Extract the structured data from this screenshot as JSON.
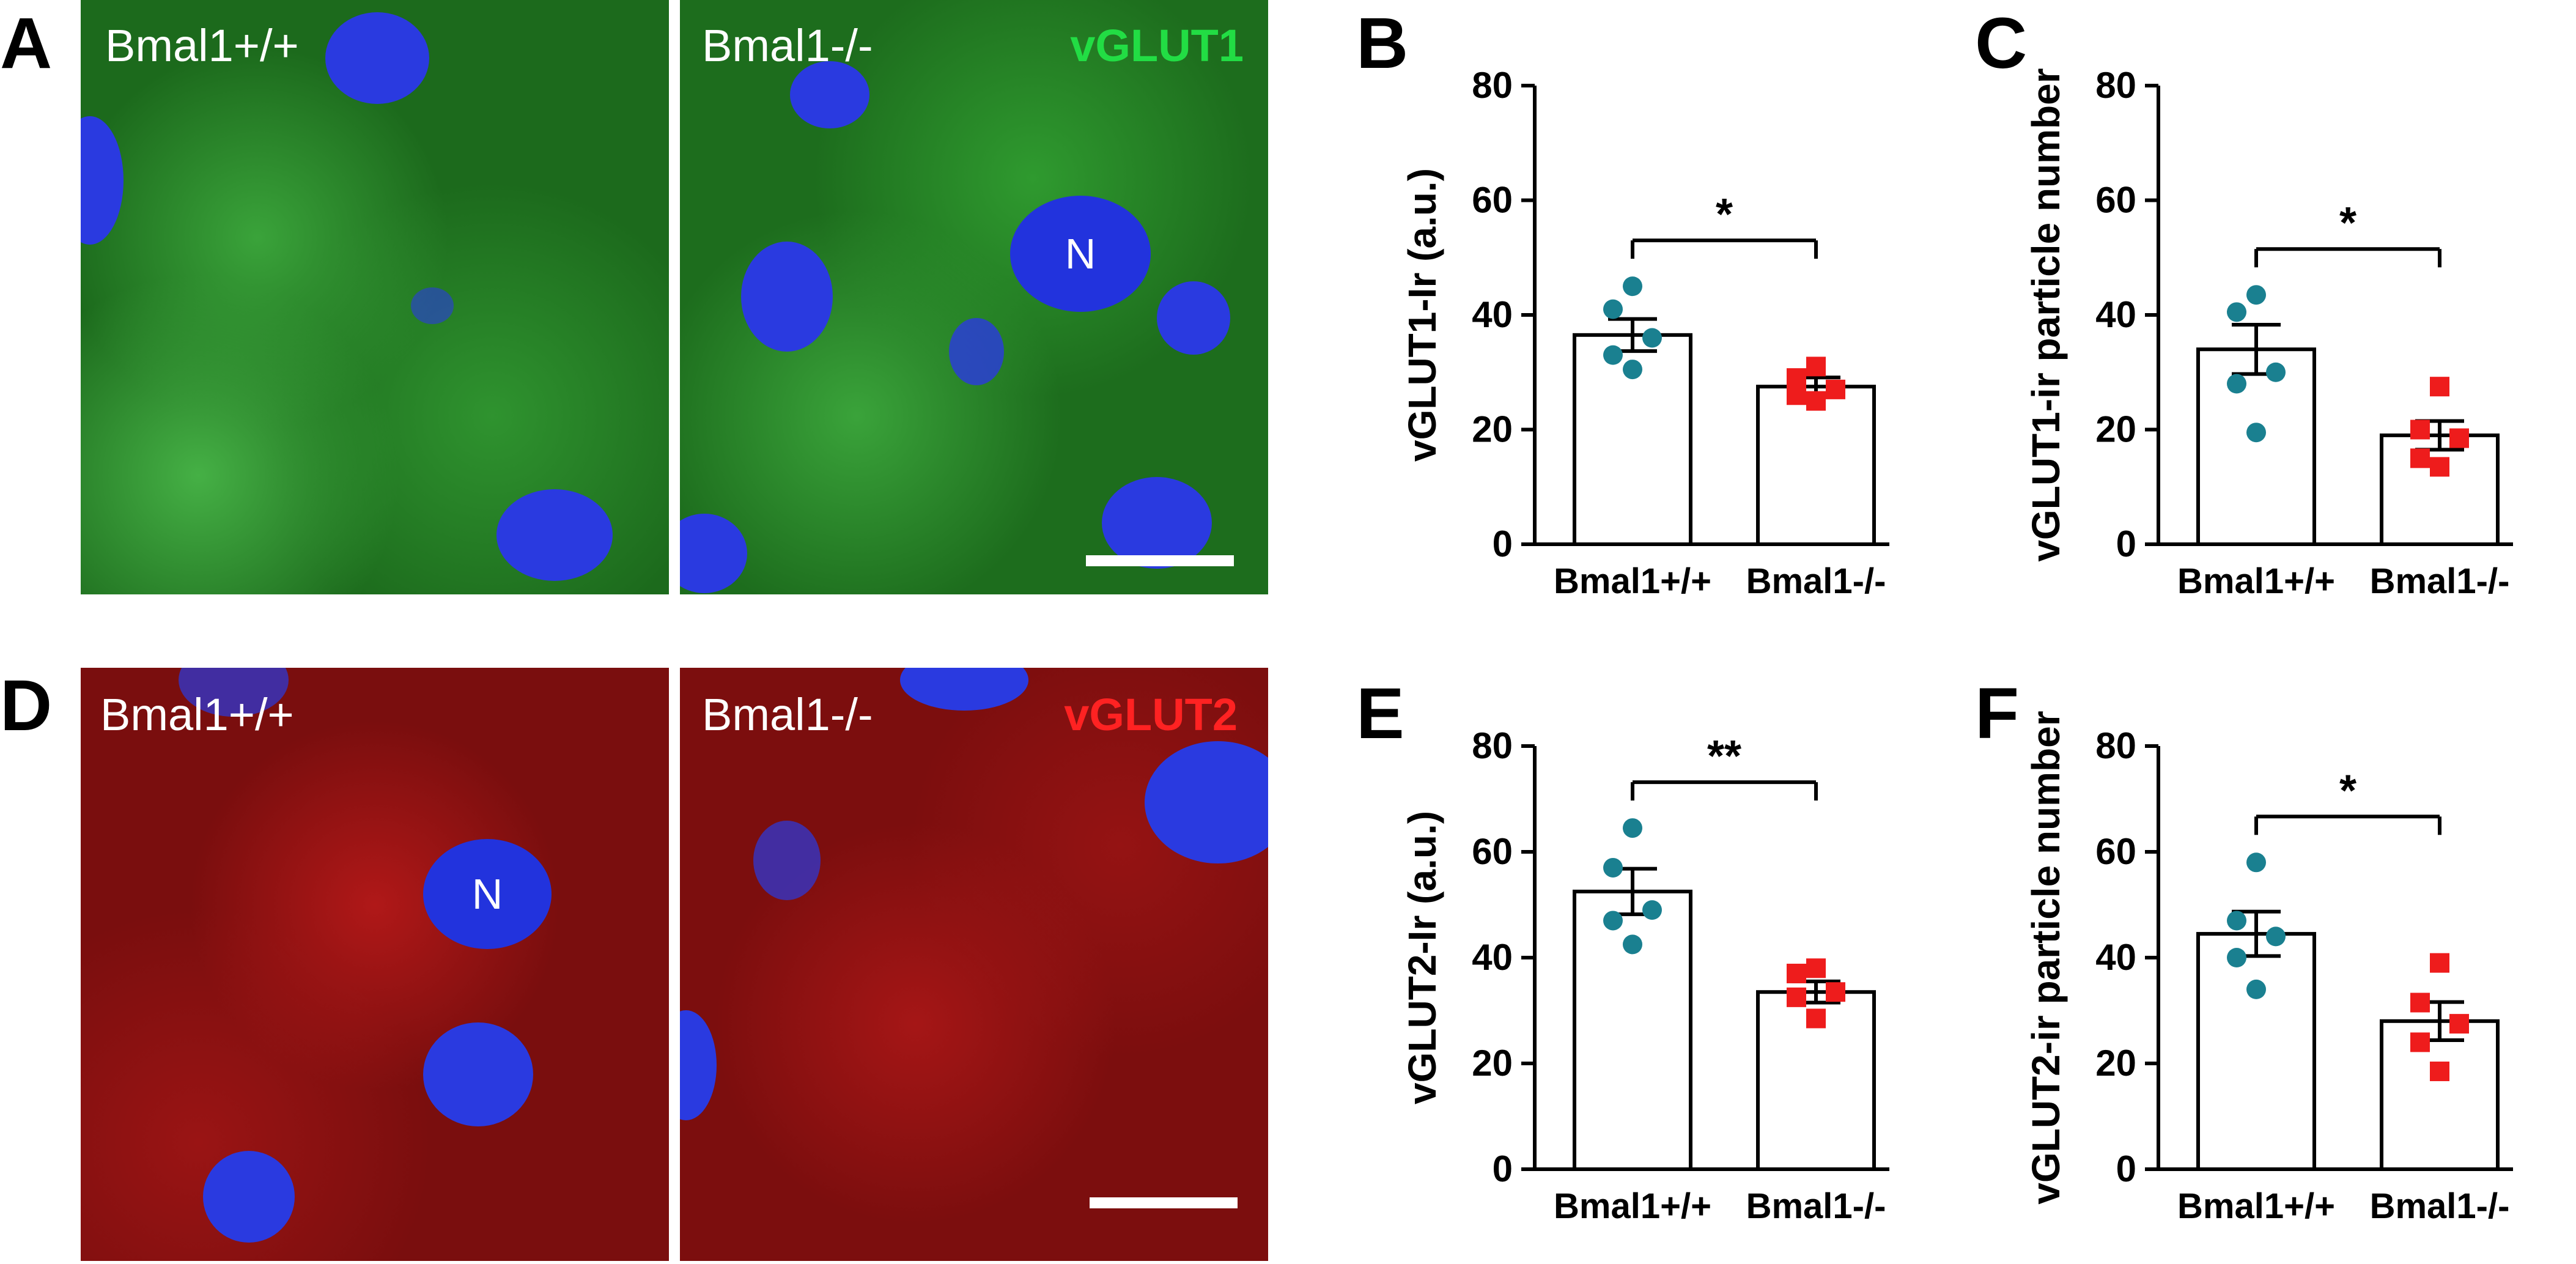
{
  "panel_letters": {
    "A": "A",
    "B": "B",
    "C": "C",
    "D": "D",
    "E": "E",
    "F": "F"
  },
  "micrographs": {
    "top_left": {
      "label": "Bmal1+/+",
      "nucleus_label": ""
    },
    "top_right": {
      "label": "Bmal1-/-",
      "marker": "vGLUT1",
      "marker_color": "#22dd44",
      "nucleus_label": "N"
    },
    "bot_left": {
      "label": "Bmal1+/+",
      "nucleus_label": "N"
    },
    "bot_right": {
      "label": "Bmal1-/-",
      "marker": "vGLUT2",
      "marker_color": "#ff2222",
      "nucleus_label": ""
    }
  },
  "colors": {
    "plus_points": "#1a8090",
    "minus_points": "#ee1c1c",
    "green_bg": "#1f7a1f",
    "red_bg": "#8a1010",
    "nucleus": "#2233dd"
  },
  "chart_data": [
    {
      "panel": "B",
      "type": "bar",
      "ylabel": "vGLUT1-Ir (a.u.)",
      "categories": [
        "Bmal1+/+",
        "Bmal1-/-"
      ],
      "ylim": [
        0,
        80
      ],
      "yticks": [
        "0",
        "20",
        "40",
        "60",
        "80"
      ],
      "values": [
        36.5,
        27.5
      ],
      "sem": [
        2.8,
        1.6
      ],
      "points": [
        [
          45,
          41,
          36,
          33,
          30.5
        ],
        [
          31,
          29,
          27,
          26,
          25
        ]
      ],
      "significance": "*"
    },
    {
      "panel": "C",
      "type": "bar",
      "ylabel": "vGLUT1-ir particle number",
      "categories": [
        "Bmal1+/+",
        "Bmal1-/-"
      ],
      "ylim": [
        0,
        80
      ],
      "yticks": [
        "0",
        "20",
        "40",
        "60",
        "80"
      ],
      "values": [
        34,
        19
      ],
      "sem": [
        4.3,
        2.5
      ],
      "points": [
        [
          43.5,
          40.5,
          30,
          28,
          19.5
        ],
        [
          27.5,
          20,
          18.5,
          15,
          13.5
        ]
      ],
      "significance": "*"
    },
    {
      "panel": "E",
      "type": "bar",
      "ylabel": "vGLUT2-Ir (a.u.)",
      "categories": [
        "Bmal1+/+",
        "Bmal1-/-"
      ],
      "ylim": [
        0,
        80
      ],
      "yticks": [
        "0",
        "20",
        "40",
        "60",
        "80"
      ],
      "values": [
        52.5,
        33.5
      ],
      "sem": [
        4.3,
        2
      ],
      "points": [
        [
          64.5,
          57,
          49,
          47,
          42.5
        ],
        [
          38,
          37,
          33.5,
          32.5,
          28.5
        ]
      ],
      "significance": "**"
    },
    {
      "panel": "F",
      "type": "bar",
      "ylabel": "vGLUT2-ir particle number",
      "categories": [
        "Bmal1+/+",
        "Bmal1-/-"
      ],
      "ylim": [
        0,
        80
      ],
      "yticks": [
        "0",
        "20",
        "40",
        "60",
        "80"
      ],
      "values": [
        44.5,
        28
      ],
      "sem": [
        4.2,
        3.6
      ],
      "points": [
        [
          58,
          47,
          44,
          40,
          34
        ],
        [
          39,
          31.5,
          27.5,
          24,
          18.5
        ]
      ],
      "significance": "*"
    }
  ]
}
